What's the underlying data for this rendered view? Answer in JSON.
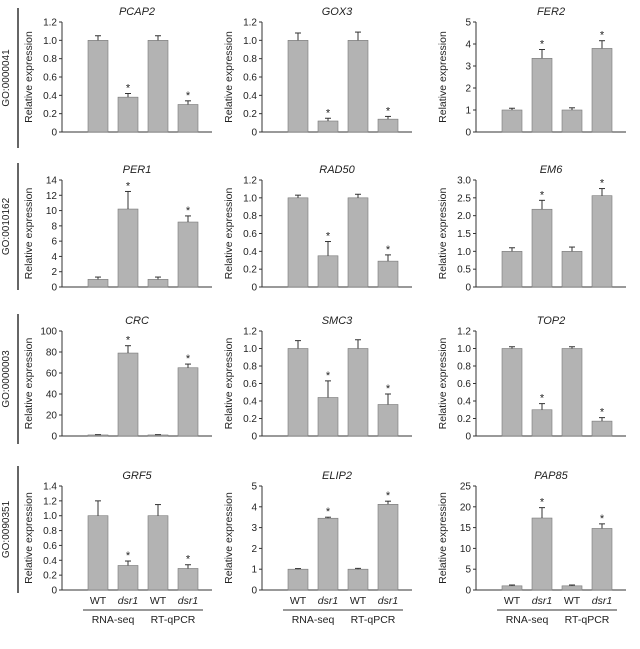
{
  "figure": {
    "colors": {
      "bar": "#b3b3b3",
      "bar_stroke": "#777777",
      "axis": "#333333",
      "text": "#222222"
    },
    "group_labels": [
      "RNA-seq",
      "RT-qPCR"
    ],
    "ylabel": "Relative expression",
    "rows": [
      "GO:0000041",
      "GO:0010162",
      "GO:0000003",
      "GO:0090351"
    ]
  },
  "chart_data": [
    {
      "type": "bar",
      "row": 0,
      "col": 0,
      "title": "PCAP2",
      "ylabel": "Relative expression",
      "categories": [
        "WT",
        "dsr1",
        "WT",
        "dsr1"
      ],
      "groups": [
        "RNA-seq",
        "RT-qPCR"
      ],
      "values": [
        1.0,
        0.38,
        1.0,
        0.3
      ],
      "errors": [
        0.05,
        0.04,
        0.05,
        0.04
      ],
      "significant": [
        false,
        true,
        false,
        true
      ],
      "ylim": [
        0,
        1.2
      ],
      "yticks": [
        "0",
        "0.2",
        "0.4",
        "0.6",
        "0.8",
        "1.0",
        "1.2"
      ],
      "show_xlabels": false
    },
    {
      "type": "bar",
      "row": 0,
      "col": 1,
      "title": "GOX3",
      "ylabel": "Relative expression",
      "categories": [
        "WT",
        "dsr1",
        "WT",
        "dsr1"
      ],
      "groups": [
        "RNA-seq",
        "RT-qPCR"
      ],
      "values": [
        1.0,
        0.12,
        1.0,
        0.14
      ],
      "errors": [
        0.08,
        0.03,
        0.09,
        0.03
      ],
      "significant": [
        false,
        true,
        false,
        true
      ],
      "ylim": [
        0,
        1.2
      ],
      "yticks": [
        "0",
        "0.2",
        "0.4",
        "0.6",
        "0.8",
        "1.0",
        "1.2"
      ],
      "show_xlabels": false
    },
    {
      "type": "bar",
      "row": 0,
      "col": 2,
      "title": "FER2",
      "ylabel": "Relative expression",
      "categories": [
        "WT",
        "dsr1",
        "WT",
        "dsr1"
      ],
      "groups": [
        "RNA-seq",
        "RT-qPCR"
      ],
      "values": [
        1.0,
        3.35,
        1.0,
        3.8
      ],
      "errors": [
        0.08,
        0.4,
        0.1,
        0.35
      ],
      "significant": [
        false,
        true,
        false,
        true
      ],
      "ylim": [
        0,
        5
      ],
      "yticks": [
        "0",
        "1",
        "2",
        "3",
        "4",
        "5"
      ],
      "show_xlabels": false
    },
    {
      "type": "bar",
      "row": 1,
      "col": 0,
      "title": "PER1",
      "ylabel": "Relative expression",
      "categories": [
        "WT",
        "dsr1",
        "WT",
        "dsr1"
      ],
      "groups": [
        "RNA-seq",
        "RT-qPCR"
      ],
      "values": [
        1.0,
        10.2,
        1.0,
        8.5
      ],
      "errors": [
        0.3,
        2.3,
        0.3,
        0.8
      ],
      "significant": [
        false,
        true,
        false,
        true
      ],
      "ylim": [
        0,
        14
      ],
      "yticks": [
        "0",
        "2",
        "4",
        "6",
        "8",
        "10",
        "12",
        "14"
      ],
      "show_xlabels": false
    },
    {
      "type": "bar",
      "row": 1,
      "col": 1,
      "title": "RAD50",
      "ylabel": "Relative expression",
      "categories": [
        "WT",
        "dsr1",
        "WT",
        "dsr1"
      ],
      "groups": [
        "RNA-seq",
        "RT-qPCR"
      ],
      "values": [
        1.0,
        0.35,
        1.0,
        0.29
      ],
      "errors": [
        0.03,
        0.16,
        0.04,
        0.07
      ],
      "significant": [
        false,
        true,
        false,
        true
      ],
      "ylim": [
        0,
        1.2
      ],
      "yticks": [
        "0",
        "0.2",
        "0.4",
        "0.6",
        "0.8",
        "1.0",
        "1.2"
      ],
      "show_xlabels": false
    },
    {
      "type": "bar",
      "row": 1,
      "col": 2,
      "title": "EM6",
      "ylabel": "Relative expression",
      "categories": [
        "WT",
        "dsr1",
        "WT",
        "dsr1"
      ],
      "groups": [
        "RNA-seq",
        "RT-qPCR"
      ],
      "values": [
        1.0,
        2.18,
        1.0,
        2.56
      ],
      "errors": [
        0.1,
        0.25,
        0.12,
        0.2
      ],
      "significant": [
        false,
        true,
        false,
        true
      ],
      "ylim": [
        0,
        3.0
      ],
      "yticks": [
        "0",
        "0.5",
        "1.0",
        "1.5",
        "2.0",
        "2.5",
        "3.0"
      ],
      "show_xlabels": false
    },
    {
      "type": "bar",
      "row": 2,
      "col": 0,
      "title": "CRC",
      "ylabel": "Relative expression",
      "categories": [
        "WT",
        "dsr1",
        "WT",
        "dsr1"
      ],
      "groups": [
        "RNA-seq",
        "RT-qPCR"
      ],
      "values": [
        1.0,
        79,
        1.0,
        65
      ],
      "errors": [
        0.3,
        7,
        0.3,
        3.5
      ],
      "significant": [
        false,
        true,
        false,
        true
      ],
      "ylim": [
        0,
        100
      ],
      "yticks": [
        "0",
        "20",
        "40",
        "60",
        "80",
        "100"
      ],
      "show_xlabels": false
    },
    {
      "type": "bar",
      "row": 2,
      "col": 1,
      "title": "SMC3",
      "ylabel": "Relative expression",
      "categories": [
        "WT",
        "dsr1",
        "WT",
        "dsr1"
      ],
      "groups": [
        "RNA-seq",
        "RT-qPCR"
      ],
      "values": [
        1.0,
        0.44,
        1.0,
        0.36
      ],
      "errors": [
        0.09,
        0.19,
        0.1,
        0.12
      ],
      "significant": [
        false,
        true,
        false,
        true
      ],
      "ylim": [
        0,
        1.2
      ],
      "yticks": [
        "0",
        "0.2",
        "0.4",
        "0.6",
        "0.8",
        "1.0",
        "1.2"
      ],
      "show_xlabels": false
    },
    {
      "type": "bar",
      "row": 2,
      "col": 2,
      "title": "TOP2",
      "ylabel": "Relative expression",
      "categories": [
        "WT",
        "dsr1",
        "WT",
        "dsr1"
      ],
      "groups": [
        "RNA-seq",
        "RT-qPCR"
      ],
      "values": [
        1.0,
        0.3,
        1.0,
        0.17
      ],
      "errors": [
        0.02,
        0.07,
        0.02,
        0.04
      ],
      "significant": [
        false,
        true,
        false,
        true
      ],
      "ylim": [
        0,
        1.2
      ],
      "yticks": [
        "0",
        "0.2",
        "0.4",
        "0.6",
        "0.8",
        "1.0",
        "1.2"
      ],
      "show_xlabels": false
    },
    {
      "type": "bar",
      "row": 3,
      "col": 0,
      "title": "GRF5",
      "ylabel": "Relative expression",
      "categories": [
        "WT",
        "dsr1",
        "WT",
        "dsr1"
      ],
      "groups": [
        "RNA-seq",
        "RT-qPCR"
      ],
      "values": [
        1.0,
        0.33,
        1.0,
        0.29
      ],
      "errors": [
        0.2,
        0.06,
        0.15,
        0.05
      ],
      "significant": [
        false,
        true,
        false,
        true
      ],
      "ylim": [
        0,
        1.4
      ],
      "yticks": [
        "0",
        "0.2",
        "0.4",
        "0.6",
        "0.8",
        "1.0",
        "1.2",
        "1.4"
      ],
      "show_xlabels": true
    },
    {
      "type": "bar",
      "row": 3,
      "col": 1,
      "title": "ELIP2",
      "ylabel": "Relative expression",
      "categories": [
        "WT",
        "dsr1",
        "WT",
        "dsr1"
      ],
      "groups": [
        "RNA-seq",
        "RT-qPCR"
      ],
      "values": [
        1.0,
        3.45,
        1.0,
        4.12
      ],
      "errors": [
        0.03,
        0.05,
        0.04,
        0.15
      ],
      "significant": [
        false,
        true,
        false,
        true
      ],
      "ylim": [
        0,
        5
      ],
      "yticks": [
        "0",
        "1",
        "2",
        "3",
        "4",
        "5"
      ],
      "show_xlabels": true
    },
    {
      "type": "bar",
      "row": 3,
      "col": 2,
      "title": "PAP85",
      "ylabel": "Relative expression",
      "categories": [
        "WT",
        "dsr1",
        "WT",
        "dsr1"
      ],
      "groups": [
        "RNA-seq",
        "RT-qPCR"
      ],
      "values": [
        1.0,
        17.3,
        1.0,
        14.8
      ],
      "errors": [
        0.2,
        2.5,
        0.2,
        1.1
      ],
      "significant": [
        false,
        true,
        false,
        true
      ],
      "ylim": [
        0,
        25
      ],
      "yticks": [
        "0",
        "5",
        "10",
        "15",
        "20",
        "25"
      ],
      "show_xlabels": true
    }
  ]
}
